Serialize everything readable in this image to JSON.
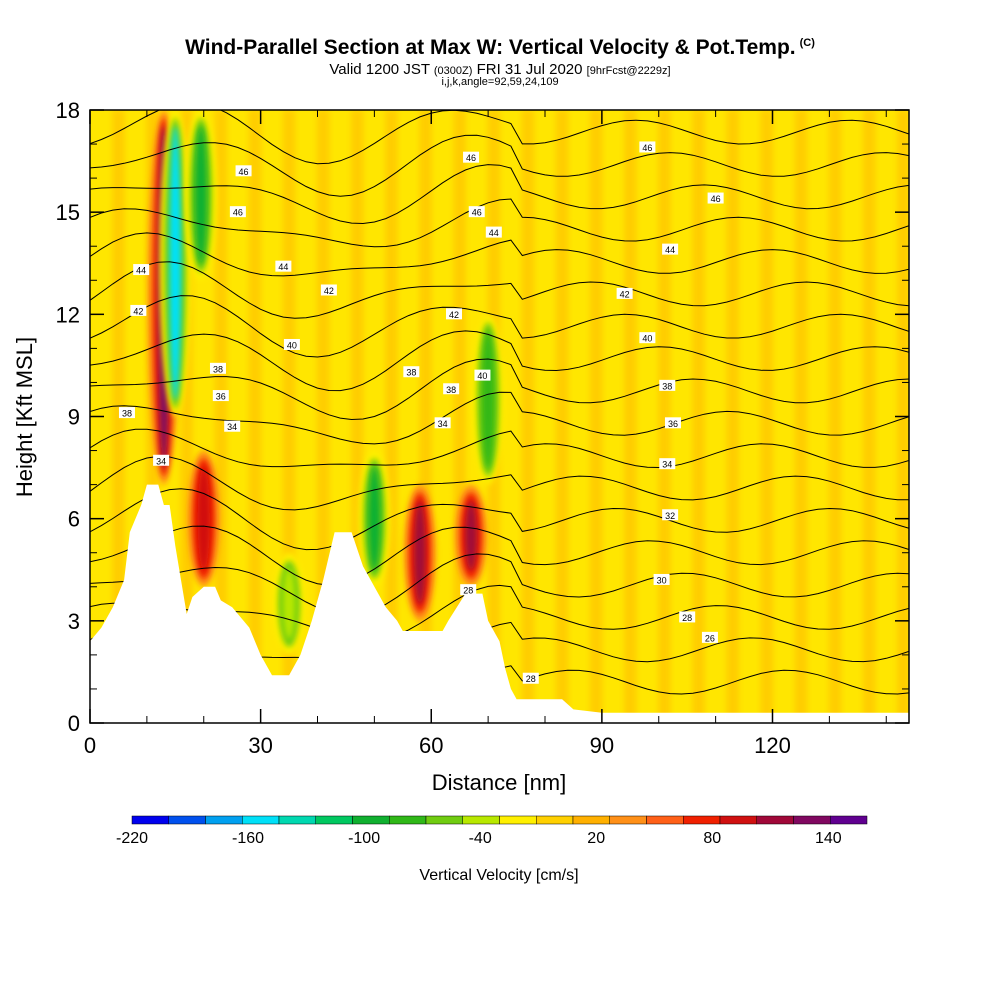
{
  "title": {
    "main": "Wind-Parallel Section at Max W: Vertical Velocity & Pot.Temp.",
    "copyright": "(C)",
    "valid_prefix": "Valid 1200 JST",
    "valid_z": "(0300Z)",
    "valid_date": "FRI 31 Jul 2020",
    "fcst": "[9hrFcst@2229z]",
    "ijk": "i,j,k,angle=92,59,24,109"
  },
  "chart_data": {
    "type": "heatmap",
    "xlabel": "Distance [nm]",
    "ylabel": "Height [Kft MSL]",
    "xlim": [
      0,
      144
    ],
    "ylim": [
      0,
      18
    ],
    "x_ticks": [
      "0",
      "30",
      "60",
      "90",
      "120"
    ],
    "x_tick_values": [
      0,
      30,
      60,
      90,
      120
    ],
    "y_ticks": [
      "0",
      "3",
      "6",
      "9",
      "12",
      "15",
      "18"
    ],
    "y_tick_values": [
      0,
      3,
      6,
      9,
      12,
      15,
      18
    ],
    "colorbar": {
      "label": "Vertical Velocity [cm/s]",
      "min": -220,
      "max": 160,
      "step": 20,
      "tick_labels": [
        "-220",
        "-160",
        "-100",
        "-40",
        "20",
        "80",
        "140"
      ],
      "tick_values": [
        -220,
        -160,
        -100,
        -40,
        20,
        80,
        140
      ],
      "colors": [
        "#0000ee",
        "#0050ee",
        "#00a0f0",
        "#00e0f8",
        "#00d8b0",
        "#00c860",
        "#10b030",
        "#30b818",
        "#70cc10",
        "#b8e800",
        "#fff000",
        "#ffd000",
        "#ffb000",
        "#ff9018",
        "#ff6018",
        "#f02000",
        "#d01010",
        "#a00838",
        "#800860",
        "#600090"
      ]
    },
    "velocity_features": [
      {
        "type": "updraft",
        "x": 13,
        "y_from": 7,
        "y_to": 18,
        "peak": 140
      },
      {
        "type": "downdraft",
        "x": 15,
        "y_from": 9,
        "y_to": 18,
        "peak": -160
      },
      {
        "type": "updraft",
        "x": 20,
        "y_from": 4,
        "y_to": 8,
        "peak": 100
      },
      {
        "type": "downdraft",
        "x": 19.5,
        "y_from": 13,
        "y_to": 18,
        "peak": -100
      },
      {
        "type": "updraft",
        "x": 58,
        "y_from": 3,
        "y_to": 7,
        "peak": 120
      },
      {
        "type": "updraft",
        "x": 67,
        "y_from": 4,
        "y_to": 7,
        "peak": 120
      },
      {
        "type": "downdraft",
        "x": 70,
        "y_from": 7,
        "y_to": 12,
        "peak": -80
      },
      {
        "type": "downdraft",
        "x": 50,
        "y_from": 4,
        "y_to": 8,
        "peak": -100
      },
      {
        "type": "downdraft",
        "x": 35,
        "y_from": 2,
        "y_to": 5,
        "peak": -40
      }
    ],
    "terrain": [
      [
        0,
        2.4
      ],
      [
        2,
        2.8
      ],
      [
        4,
        3.4
      ],
      [
        6,
        4.2
      ],
      [
        7,
        5.6
      ],
      [
        9,
        6.4
      ],
      [
        10,
        7
      ],
      [
        12,
        7
      ],
      [
        13,
        6.4
      ],
      [
        14,
        6.4
      ],
      [
        15,
        5.2
      ],
      [
        16,
        4.2
      ],
      [
        17,
        3.2
      ],
      [
        18,
        3.7
      ],
      [
        20,
        4
      ],
      [
        22,
        4
      ],
      [
        23,
        3.6
      ],
      [
        25,
        3.4
      ],
      [
        28,
        2.8
      ],
      [
        30,
        2
      ],
      [
        32,
        1.4
      ],
      [
        35,
        1.4
      ],
      [
        37,
        2
      ],
      [
        39,
        3
      ],
      [
        41,
        4.2
      ],
      [
        43,
        5.6
      ],
      [
        46,
        5.6
      ],
      [
        48,
        4.6
      ],
      [
        50,
        4
      ],
      [
        52,
        3.4
      ],
      [
        54,
        3
      ],
      [
        55,
        2.7
      ],
      [
        58,
        2.7
      ],
      [
        61,
        2.7
      ],
      [
        62,
        2.7
      ],
      [
        63,
        3
      ],
      [
        66,
        3.8
      ],
      [
        69,
        3.8
      ],
      [
        70,
        3
      ],
      [
        72,
        2.4
      ],
      [
        73,
        1.6
      ],
      [
        74,
        1
      ],
      [
        75,
        0.7
      ],
      [
        79,
        0.7
      ],
      [
        83,
        0.7
      ],
      [
        85,
        0.4
      ],
      [
        90,
        0.3
      ],
      [
        144,
        0.3
      ]
    ],
    "theta_contour_labels": [
      {
        "label": "46",
        "x": 27,
        "y": 16.2
      },
      {
        "label": "46",
        "x": 67,
        "y": 16.6
      },
      {
        "label": "46",
        "x": 98,
        "y": 16.9
      },
      {
        "label": "46",
        "x": 110,
        "y": 15.4
      },
      {
        "label": "46",
        "x": 26,
        "y": 15
      },
      {
        "label": "46",
        "x": 68,
        "y": 15
      },
      {
        "label": "44",
        "x": 9,
        "y": 13.3
      },
      {
        "label": "44",
        "x": 34,
        "y": 13.4
      },
      {
        "label": "44",
        "x": 71,
        "y": 14.4
      },
      {
        "label": "44",
        "x": 102,
        "y": 13.9
      },
      {
        "label": "42",
        "x": 8.5,
        "y": 12.1
      },
      {
        "label": "42",
        "x": 42,
        "y": 12.7
      },
      {
        "label": "42",
        "x": 64,
        "y": 12.0
      },
      {
        "label": "42",
        "x": 94,
        "y": 12.6
      },
      {
        "label": "40",
        "x": 35.5,
        "y": 11.1
      },
      {
        "label": "40",
        "x": 69,
        "y": 10.2
      },
      {
        "label": "40",
        "x": 98,
        "y": 11.3
      },
      {
        "label": "38",
        "x": 22.5,
        "y": 10.4
      },
      {
        "label": "38",
        "x": 56.5,
        "y": 10.3
      },
      {
        "label": "38",
        "x": 63.5,
        "y": 9.8
      },
      {
        "label": "38",
        "x": 101.5,
        "y": 9.9
      },
      {
        "label": "38",
        "x": 6.5,
        "y": 9.1
      },
      {
        "label": "36",
        "x": 23,
        "y": 9.6
      },
      {
        "label": "36",
        "x": 102.5,
        "y": 8.8
      },
      {
        "label": "34",
        "x": 25,
        "y": 8.7
      },
      {
        "label": "34",
        "x": 62,
        "y": 8.8
      },
      {
        "label": "34",
        "x": 101.5,
        "y": 7.6
      },
      {
        "label": "34",
        "x": 12.5,
        "y": 7.7
      },
      {
        "label": "32",
        "x": 102,
        "y": 6.1
      },
      {
        "label": "30",
        "x": 100.5,
        "y": 4.2
      },
      {
        "label": "28",
        "x": 105,
        "y": 3.1
      },
      {
        "label": "28",
        "x": 77.5,
        "y": 1.3
      },
      {
        "label": "26",
        "x": 109,
        "y": 2.5
      },
      {
        "label": "28",
        "x": 66.5,
        "y": 3.9
      }
    ]
  }
}
